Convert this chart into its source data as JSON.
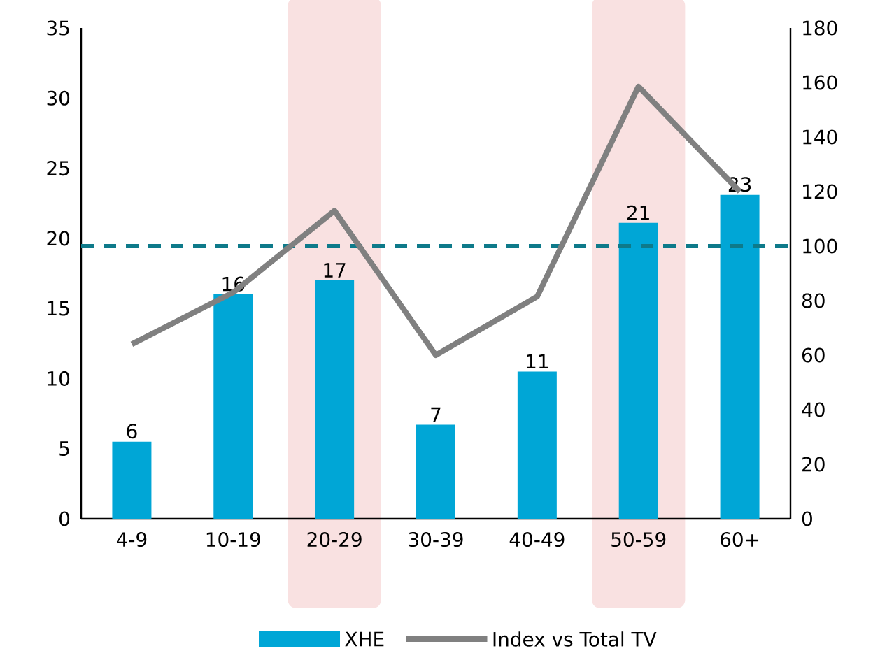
{
  "chart_data": {
    "type": "bar",
    "categories": [
      "4-9",
      "10-19",
      "20-29",
      "30-39",
      "40-49",
      "50-59",
      "60+"
    ],
    "series": [
      {
        "name": "XHE",
        "color": "#00a6d6",
        "values": [
          5.5,
          16,
          17,
          6.7,
          10.5,
          21.1,
          23.1
        ],
        "value_labels": [
          "6",
          "16",
          "17",
          "7",
          "11",
          "21",
          "23"
        ]
      },
      {
        "name": "Index vs Total TV",
        "type": "line",
        "axis": "y2",
        "color": "#808080",
        "values": [
          64,
          83,
          113,
          60,
          81.5,
          158.5,
          120
        ]
      }
    ],
    "ylim": [
      0,
      35
    ],
    "yticks": [
      0,
      5,
      10,
      15,
      20,
      25,
      30,
      35
    ],
    "y2lim": [
      0,
      180
    ],
    "y2ticks": [
      0,
      20,
      40,
      60,
      80,
      100,
      120,
      140,
      160,
      180
    ],
    "ref_lines": [
      {
        "axis": "y2",
        "value": 100,
        "color": "#0e7a8a",
        "line_style": "dashed"
      }
    ],
    "bands": [
      {
        "axis": "x",
        "from": "20-29",
        "to": "20-29",
        "color": "#f9e1e1"
      },
      {
        "axis": "x",
        "from": "50-59",
        "to": "50-59",
        "color": "#f9e1e1"
      }
    ],
    "legend": "bottom"
  }
}
